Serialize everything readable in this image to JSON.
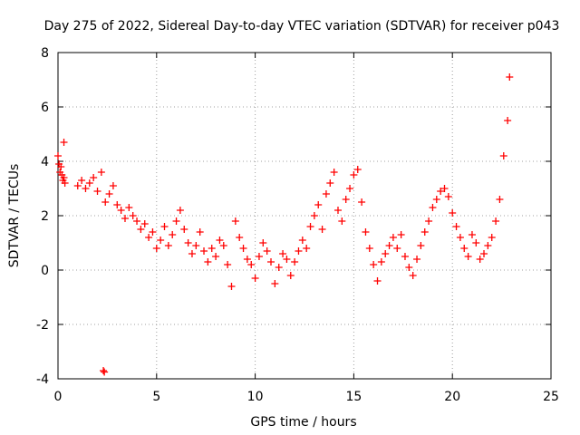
{
  "chart_data": {
    "type": "scatter",
    "title": "Day 275 of 2022, Sidereal Day-to-day VTEC variation (SDTVAR) for receiver p043",
    "xlabel": "GPS time / hours",
    "ylabel": "SDTVAR / TECUs",
    "xlim": [
      0,
      25
    ],
    "ylim": [
      -4,
      8
    ],
    "xticks": [
      0,
      5,
      10,
      15,
      20,
      25
    ],
    "yticks": [
      -4,
      -2,
      0,
      2,
      4,
      6,
      8
    ],
    "grid": true,
    "marker": "plus",
    "color": "#ff0000",
    "series": [
      {
        "name": "p043",
        "x": [
          0.0,
          0.05,
          0.1,
          0.15,
          0.2,
          0.25,
          0.3,
          0.35,
          1.0,
          1.2,
          1.4,
          1.6,
          1.8,
          2.0,
          2.2,
          2.4,
          2.6,
          2.8,
          3.0,
          3.2,
          3.4,
          3.6,
          3.8,
          4.0,
          4.2,
          4.4,
          4.6,
          4.8,
          5.0,
          5.2,
          5.4,
          5.6,
          5.8,
          6.0,
          6.2,
          6.4,
          6.6,
          6.8,
          7.0,
          7.2,
          7.4,
          7.6,
          7.8,
          8.0,
          8.2,
          8.4,
          8.6,
          8.8,
          9.0,
          9.2,
          9.4,
          9.6,
          9.8,
          10.0,
          10.2,
          10.4,
          10.6,
          10.8,
          11.0,
          11.2,
          11.4,
          11.6,
          11.8,
          12.0,
          12.2,
          12.4,
          12.6,
          12.8,
          13.0,
          13.2,
          13.4,
          13.6,
          13.8,
          14.0,
          14.2,
          14.4,
          14.6,
          14.8,
          15.0,
          15.2,
          15.4,
          15.6,
          15.8,
          16.0,
          16.2,
          16.4,
          16.6,
          16.8,
          17.0,
          17.2,
          17.4,
          17.6,
          17.8,
          18.0,
          18.2,
          18.4,
          18.6,
          18.8,
          19.0,
          19.2,
          19.4,
          19.6,
          19.8,
          20.0,
          20.2,
          20.4,
          20.6,
          20.8,
          21.0,
          21.2,
          21.4,
          21.6,
          21.8,
          22.0,
          22.2,
          22.4,
          22.6,
          22.8,
          22.9,
          2.3,
          2.35,
          0.3
        ],
        "y": [
          4.2,
          3.9,
          3.6,
          3.8,
          3.5,
          3.3,
          3.4,
          3.2,
          3.1,
          3.3,
          3.0,
          3.2,
          3.4,
          2.9,
          3.6,
          2.5,
          2.8,
          3.1,
          2.4,
          2.2,
          1.9,
          2.3,
          2.0,
          1.8,
          1.5,
          1.7,
          1.2,
          1.4,
          0.8,
          1.1,
          1.6,
          0.9,
          1.3,
          1.8,
          2.2,
          1.5,
          1.0,
          0.6,
          0.9,
          1.4,
          0.7,
          0.3,
          0.8,
          0.5,
          1.1,
          0.9,
          0.2,
          -0.6,
          1.8,
          1.2,
          0.8,
          0.4,
          0.2,
          -0.3,
          0.5,
          1.0,
          0.7,
          0.3,
          -0.5,
          0.1,
          0.6,
          0.4,
          -0.2,
          0.3,
          0.7,
          1.1,
          0.8,
          1.6,
          2.0,
          2.4,
          1.5,
          2.8,
          3.2,
          3.6,
          2.2,
          1.8,
          2.6,
          3.0,
          3.5,
          3.7,
          2.5,
          1.4,
          0.8,
          0.2,
          -0.4,
          0.3,
          0.6,
          0.9,
          1.2,
          0.8,
          1.3,
          0.5,
          0.1,
          -0.2,
          0.4,
          0.9,
          1.4,
          1.8,
          2.3,
          2.6,
          2.9,
          3.0,
          2.7,
          2.1,
          1.6,
          1.2,
          0.8,
          0.5,
          1.3,
          1.0,
          0.4,
          0.6,
          0.9,
          1.2,
          1.8,
          2.6,
          4.2,
          5.5,
          7.1,
          -3.7,
          -3.75,
          4.7
        ]
      }
    ]
  }
}
